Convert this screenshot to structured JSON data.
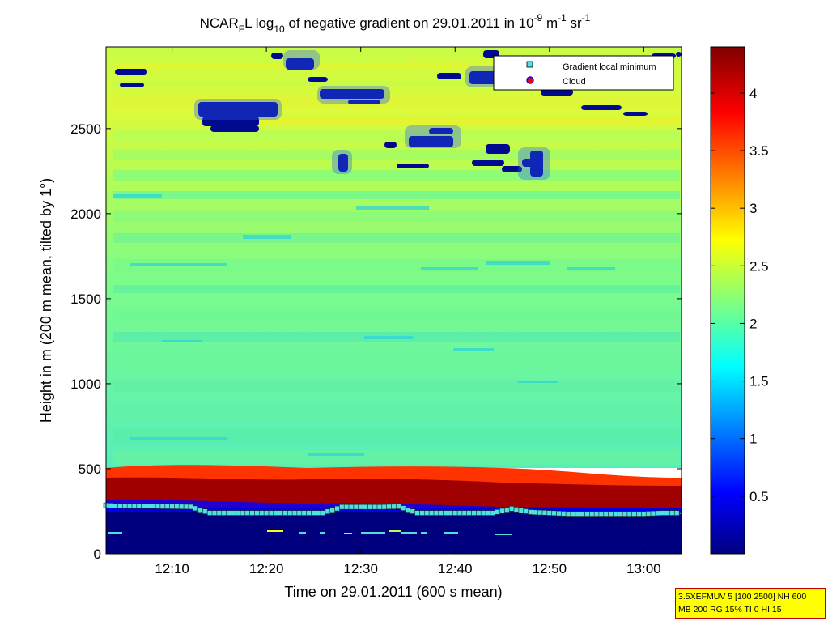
{
  "title": {
    "prefix": "NCAR",
    "sub1": "F",
    "mid": "L log",
    "sub2": "10",
    "text": " of negative gradient on 29.01.2011 in 10",
    "sup1": "-9",
    "unit1": " m",
    "sup2": "-1",
    "unit2": " sr",
    "sup3": "-1"
  },
  "info_box": {
    "line1": "3.5XEFMUV 5 [100 2500] NH 600",
    "line2": "MB 200 RG 15% TI 0 HI 15"
  },
  "colors": {
    "dark_blue": "#00007f",
    "blue": "#0000ff",
    "cyan": "#00ffff",
    "yellow": "#ffff00",
    "red": "#ff0000",
    "dark_red": "#7f0000",
    "marker_fill": "#4fe0e0",
    "cloud_marker": "#ff0000"
  },
  "chart_data": {
    "type": "heatmap",
    "xlabel": "Time on 29.01.2011 (600 s mean)",
    "ylabel": "Height in m (200 m mean, tilted by 1°)",
    "x_range": [
      "12:03",
      "13:04"
    ],
    "ylim": [
      0,
      2980
    ],
    "x_ticks": [
      "12:10",
      "12:20",
      "12:30",
      "12:40",
      "12:50",
      "13:00"
    ],
    "y_ticks": [
      0,
      500,
      1000,
      1500,
      2000,
      2500
    ],
    "colorbar": {
      "range": [
        0,
        4.4
      ],
      "ticks": [
        "0.5",
        "1",
        "1.5",
        "2",
        "2.5",
        "3",
        "3.5",
        "4"
      ],
      "colormap": "jet"
    },
    "legend": {
      "placement": "top-right",
      "entries": [
        {
          "label": "Gradient local minimum",
          "marker": "square",
          "color": "#4fe0e0"
        },
        {
          "label": "Cloud",
          "marker": "circle",
          "color": "#ff0000"
        }
      ]
    },
    "field_description": {
      "below_boundary": 0,
      "boundary_layer_top": 4.4,
      "main_range": [
        1.8,
        2.6
      ]
    },
    "series": [
      {
        "name": "Gradient local minimum",
        "x": [
          "12:03",
          "12:05",
          "12:07",
          "12:10",
          "12:12",
          "12:14",
          "12:16",
          "12:18",
          "12:20",
          "12:22",
          "12:24",
          "12:26",
          "12:28",
          "12:30",
          "12:32",
          "12:34",
          "12:36",
          "12:38",
          "12:40",
          "12:42",
          "12:44",
          "12:46",
          "12:48",
          "12:50",
          "12:52",
          "12:54",
          "12:56",
          "12:58",
          "13:00",
          "13:02",
          "13:04"
        ],
        "y": [
          285,
          280,
          280,
          278,
          276,
          240,
          240,
          240,
          240,
          240,
          240,
          240,
          275,
          275,
          275,
          278,
          240,
          240,
          240,
          240,
          240,
          265,
          245,
          240,
          235,
          235,
          235,
          235,
          235,
          240,
          240
        ]
      }
    ]
  }
}
